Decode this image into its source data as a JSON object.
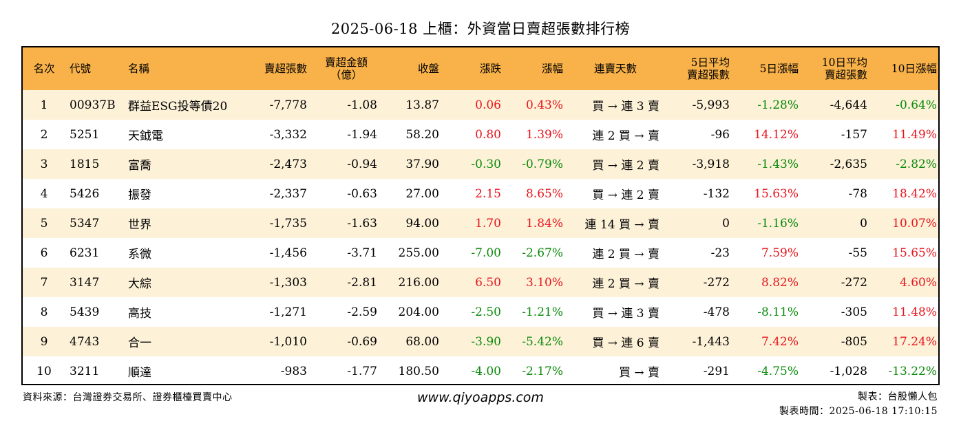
{
  "title": "2025-06-18 上櫃：外資當日賣超張數排行榜",
  "table": {
    "headers": {
      "rank": "名次",
      "code": "代號",
      "name": "名稱",
      "sell_qty": "賣超張數",
      "sell_amt_1": "賣超金額",
      "sell_amt_2": "（億）",
      "close": "收盤",
      "change": "漲跌",
      "pct": "漲幅",
      "streak": "連賣天數",
      "avg5_1": "5日平均",
      "avg5_2": "賣超張數",
      "pct5": "5日漲幅",
      "avg10_1": "10日平均",
      "avg10_2": "賣超張數",
      "pct10": "10日漲幅"
    },
    "rows": [
      {
        "rank": "1",
        "code": "00937B",
        "name": "群益ESG投等債20",
        "sell_qty": "-7,778",
        "sell_amt": "-1.08",
        "close": "13.87",
        "change": "0.06",
        "change_color": "red",
        "pct": "0.43%",
        "pct_color": "red",
        "streak": "買 → 連 3 賣",
        "avg5": "-5,993",
        "pct5": "-1.28%",
        "pct5_color": "green",
        "avg10": "-4,644",
        "pct10": "-0.64%",
        "pct10_color": "green"
      },
      {
        "rank": "2",
        "code": "5251",
        "name": "天鉞電",
        "sell_qty": "-3,332",
        "sell_amt": "-1.94",
        "close": "58.20",
        "change": "0.80",
        "change_color": "red",
        "pct": "1.39%",
        "pct_color": "red",
        "streak": "連 2 買 → 賣",
        "avg5": "-96",
        "pct5": "14.12%",
        "pct5_color": "red",
        "avg10": "-157",
        "pct10": "11.49%",
        "pct10_color": "red"
      },
      {
        "rank": "3",
        "code": "1815",
        "name": "富喬",
        "sell_qty": "-2,473",
        "sell_amt": "-0.94",
        "close": "37.90",
        "change": "-0.30",
        "change_color": "green",
        "pct": "-0.79%",
        "pct_color": "green",
        "streak": "買 → 連 2 賣",
        "avg5": "-3,918",
        "pct5": "-1.43%",
        "pct5_color": "green",
        "avg10": "-2,635",
        "pct10": "-2.82%",
        "pct10_color": "green"
      },
      {
        "rank": "4",
        "code": "5426",
        "name": "振發",
        "sell_qty": "-2,337",
        "sell_amt": "-0.63",
        "close": "27.00",
        "change": "2.15",
        "change_color": "red",
        "pct": "8.65%",
        "pct_color": "red",
        "streak": "買 → 連 2 賣",
        "avg5": "-132",
        "pct5": "15.63%",
        "pct5_color": "red",
        "avg10": "-78",
        "pct10": "18.42%",
        "pct10_color": "red"
      },
      {
        "rank": "5",
        "code": "5347",
        "name": "世界",
        "sell_qty": "-1,735",
        "sell_amt": "-1.63",
        "close": "94.00",
        "change": "1.70",
        "change_color": "red",
        "pct": "1.84%",
        "pct_color": "red",
        "streak": "連 14 買 → 賣",
        "avg5": "0",
        "pct5": "-1.16%",
        "pct5_color": "green",
        "avg10": "0",
        "pct10": "10.07%",
        "pct10_color": "red"
      },
      {
        "rank": "6",
        "code": "6231",
        "name": "系微",
        "sell_qty": "-1,456",
        "sell_amt": "-3.71",
        "close": "255.00",
        "change": "-7.00",
        "change_color": "green",
        "pct": "-2.67%",
        "pct_color": "green",
        "streak": "連 2 買 → 賣",
        "avg5": "-23",
        "pct5": "7.59%",
        "pct5_color": "red",
        "avg10": "-55",
        "pct10": "15.65%",
        "pct10_color": "red"
      },
      {
        "rank": "7",
        "code": "3147",
        "name": "大綜",
        "sell_qty": "-1,303",
        "sell_amt": "-2.81",
        "close": "216.00",
        "change": "6.50",
        "change_color": "red",
        "pct": "3.10%",
        "pct_color": "red",
        "streak": "連 2 買 → 賣",
        "avg5": "-272",
        "pct5": "8.82%",
        "pct5_color": "red",
        "avg10": "-272",
        "pct10": "4.60%",
        "pct10_color": "red"
      },
      {
        "rank": "8",
        "code": "5439",
        "name": "高技",
        "sell_qty": "-1,271",
        "sell_amt": "-2.59",
        "close": "204.00",
        "change": "-2.50",
        "change_color": "green",
        "pct": "-1.21%",
        "pct_color": "green",
        "streak": "買 → 連 3 賣",
        "avg5": "-478",
        "pct5": "-8.11%",
        "pct5_color": "green",
        "avg10": "-305",
        "pct10": "11.48%",
        "pct10_color": "red"
      },
      {
        "rank": "9",
        "code": "4743",
        "name": "合一",
        "sell_qty": "-1,010",
        "sell_amt": "-0.69",
        "close": "68.00",
        "change": "-3.90",
        "change_color": "green",
        "pct": "-5.42%",
        "pct_color": "green",
        "streak": "買 → 連 6 賣",
        "avg5": "-1,443",
        "pct5": "7.42%",
        "pct5_color": "red",
        "avg10": "-805",
        "pct10": "17.24%",
        "pct10_color": "red"
      },
      {
        "rank": "10",
        "code": "3211",
        "name": "順達",
        "sell_qty": "-983",
        "sell_amt": "-1.77",
        "close": "180.50",
        "change": "-4.00",
        "change_color": "green",
        "pct": "-2.17%",
        "pct_color": "green",
        "streak": "買 → 賣",
        "avg5": "-291",
        "pct5": "-4.75%",
        "pct5_color": "green",
        "avg10": "-1,028",
        "pct10": "-13.22%",
        "pct10_color": "green"
      }
    ]
  },
  "footer": {
    "source": "資料來源：台灣證券交易所、證券櫃檯買賣中心",
    "website": "www.qiyoapps.com",
    "maker": "製表：台股懶人包",
    "made_time": "製表時間：2025-06-18 17:10:15"
  },
  "colors": {
    "header_bg": "#f9b24a",
    "row_alt_bg": "#fdf1d8",
    "up": "#e8141c",
    "down": "#0a8a0a"
  }
}
